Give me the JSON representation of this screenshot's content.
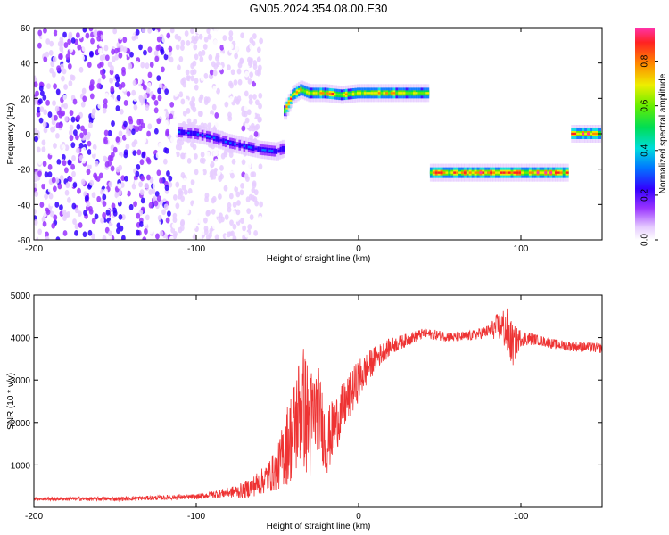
{
  "title": "GN05.2024.354.08.00.E30",
  "chart_data": [
    {
      "type": "heatmap",
      "name": "spectrogram",
      "xlabel": "Height of straight line (km)",
      "ylabel": "Frequency (Hz)",
      "xlim": [
        -200,
        150
      ],
      "ylim": [
        -60,
        60
      ],
      "xticks": [
        -200,
        -100,
        0,
        100
      ],
      "yticks": [
        -60,
        -40,
        -20,
        0,
        20,
        40,
        60
      ],
      "colorbar": {
        "label": "Normalized spectral amplitude",
        "range": [
          0.0,
          0.95
        ],
        "ticks": [
          0.0,
          0.2,
          0.4,
          0.6,
          0.8
        ],
        "tick_labels": [
          "0.0",
          "0.2",
          "0.4",
          "0.6",
          "0.8"
        ]
      },
      "features": [
        {
          "kind": "noise",
          "x_range": [
            -200,
            -60
          ],
          "y_range": [
            -60,
            60
          ],
          "amplitude": 0.1
        },
        {
          "kind": "track",
          "points": [
            [
              -110,
              1
            ],
            [
              -100,
              0
            ],
            [
              -90,
              -2
            ],
            [
              -80,
              -5
            ],
            [
              -70,
              -7
            ],
            [
              -60,
              -9
            ],
            [
              -50,
              -10
            ],
            [
              -45,
              -8
            ]
          ],
          "amplitude": 0.35
        },
        {
          "kind": "track",
          "points": [
            [
              -45,
              13
            ],
            [
              -40,
              22
            ],
            [
              -35,
              25
            ],
            [
              -30,
              23
            ],
            [
              -20,
              23
            ],
            [
              -10,
              22
            ],
            [
              0,
              23
            ],
            [
              10,
              23
            ],
            [
              30,
              23
            ],
            [
              44,
              23
            ]
          ],
          "amplitude": 0.85
        },
        {
          "kind": "track",
          "points": [
            [
              45,
              -22
            ],
            [
              90,
              -22
            ],
            [
              130,
              -22
            ]
          ],
          "amplitude": 0.95
        },
        {
          "kind": "track",
          "points": [
            [
              132,
              0
            ],
            [
              150,
              0
            ]
          ],
          "amplitude": 0.95
        }
      ]
    },
    {
      "type": "line",
      "name": "snr",
      "xlabel": "Height of straight line (km)",
      "ylabel": "SNR (10 * v/v)",
      "xlim": [
        -200,
        150
      ],
      "ylim": [
        0,
        5000
      ],
      "xticks": [
        -200,
        -100,
        0,
        100
      ],
      "yticks": [
        1000,
        2000,
        3000,
        4000,
        5000
      ],
      "color": "#ee3333",
      "series_profile": {
        "x": [
          -200,
          -150,
          -100,
          -80,
          -70,
          -60,
          -50,
          -45,
          -40,
          -35,
          -30,
          -25,
          -20,
          -10,
          0,
          10,
          20,
          30,
          40,
          50,
          60,
          70,
          80,
          88,
          92,
          95,
          100,
          110,
          120,
          130,
          150
        ],
        "y": [
          200,
          200,
          250,
          350,
          400,
          600,
          900,
          1400,
          1800,
          2500,
          1900,
          2400,
          1500,
          2300,
          3000,
          3500,
          3800,
          3950,
          4100,
          4050,
          4000,
          4050,
          4150,
          4300,
          4100,
          3800,
          4000,
          3950,
          3850,
          3800,
          3750
        ],
        "noise_amplitude": [
          40,
          50,
          60,
          120,
          200,
          300,
          500,
          900,
          1200,
          1500,
          1400,
          1000,
          800,
          600,
          500,
          300,
          200,
          150,
          120,
          120,
          120,
          120,
          150,
          400,
          600,
          500,
          200,
          120,
          120,
          120,
          120
        ]
      }
    }
  ]
}
